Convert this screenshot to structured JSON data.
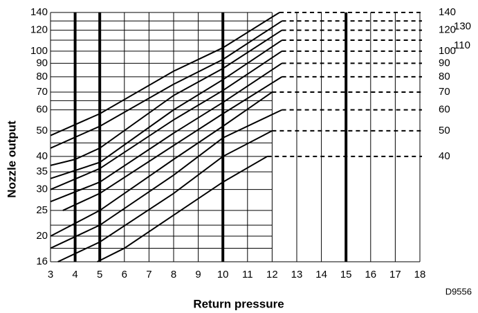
{
  "chart_data": {
    "type": "line",
    "xlabel": "Return pressure",
    "ylabel": "Nozzle output",
    "annotation": "D9556",
    "xlim": [
      3,
      18
    ],
    "xticks": [
      3,
      4,
      5,
      6,
      7,
      8,
      9,
      10,
      11,
      12,
      13,
      14,
      15,
      16,
      17,
      18
    ],
    "ylim": [
      16,
      140
    ],
    "log_y": true,
    "yticks": [
      16,
      20,
      25,
      30,
      35,
      40,
      50,
      60,
      70,
      80,
      90,
      100,
      120,
      140
    ],
    "ygrid": [
      16,
      18,
      20,
      22,
      25,
      30,
      35,
      40,
      45,
      50,
      60,
      65,
      70,
      80,
      90,
      100,
      110,
      120,
      130,
      140
    ],
    "thick_x": [
      4,
      5,
      10,
      15
    ],
    "series": [
      {
        "name": "140",
        "color": "#000",
        "x": [
          3,
          5,
          8,
          10,
          12.3
        ],
        "values": [
          48,
          58,
          84,
          103,
          140
        ]
      },
      {
        "name": "130",
        "color": "#000",
        "x": [
          3,
          5,
          8,
          10,
          12.4
        ],
        "values": [
          43,
          52,
          75,
          93,
          130
        ]
      },
      {
        "name": "120",
        "color": "#000",
        "x": [
          3,
          4,
          5,
          8,
          10,
          12.4
        ],
        "values": [
          37,
          39,
          43,
          68,
          86,
          120
        ]
      },
      {
        "name": "110",
        "color": "#000",
        "x": [
          3,
          5,
          8,
          10,
          12.4
        ],
        "values": [
          33,
          38,
          60,
          78,
          110
        ]
      },
      {
        "name": "100",
        "color": "#000",
        "x": [
          3,
          5,
          8,
          10,
          12.4
        ],
        "values": [
          30,
          36,
          55,
          71,
          100
        ]
      },
      {
        "name": "90",
        "color": "#000",
        "x": [
          3,
          5,
          8,
          10,
          12.4
        ],
        "values": [
          27,
          32,
          49,
          64,
          90
        ]
      },
      {
        "name": "80",
        "color": "#000",
        "x": [
          3.5,
          5,
          8,
          10,
          12.4
        ],
        "values": [
          25,
          29,
          44,
          58,
          80
        ]
      },
      {
        "name": "70",
        "color": "#000",
        "x": [
          3,
          5,
          8,
          10,
          12
        ],
        "values": [
          20,
          25,
          39,
          52,
          70
        ]
      },
      {
        "name": "60",
        "color": "#000",
        "x": [
          3,
          5,
          8,
          10,
          12.4
        ],
        "values": [
          18,
          22,
          34,
          47,
          60
        ]
      },
      {
        "name": "50",
        "color": "#000",
        "x": [
          3.3,
          5,
          8,
          10,
          12
        ],
        "values": [
          16,
          19,
          29,
          40,
          50
        ]
      },
      {
        "name": "40",
        "color": "#000",
        "x": [
          4.9,
          6,
          8,
          10,
          11.8
        ],
        "values": [
          16,
          18,
          24,
          32,
          40
        ]
      }
    ]
  }
}
